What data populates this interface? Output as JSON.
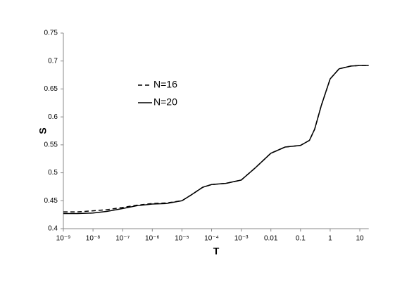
{
  "chart_data": {
    "type": "line",
    "x_label": "T",
    "y_label": "S",
    "xscale": "log",
    "x": [
      1e-09,
      3e-09,
      1e-08,
      3e-08,
      1e-07,
      3e-07,
      1e-06,
      3e-06,
      1e-05,
      2e-05,
      5e-05,
      0.0001,
      0.0003,
      0.001,
      0.003,
      0.01,
      0.03,
      0.1,
      0.2,
      0.3,
      0.5,
      1,
      2,
      5,
      10,
      20
    ],
    "series": [
      {
        "name": "N=16",
        "color": "#000000",
        "dash": "6,4",
        "values": [
          0.43,
          0.43,
          0.432,
          0.434,
          0.438,
          0.442,
          0.445,
          0.446,
          0.45,
          0.46,
          0.474,
          0.479,
          0.481,
          0.487,
          0.509,
          0.535,
          0.546,
          0.549,
          0.558,
          0.578,
          0.62,
          0.668,
          0.686,
          0.691,
          0.692,
          0.692
        ]
      },
      {
        "name": "N=20",
        "color": "#000000",
        "values": [
          0.427,
          0.427,
          0.428,
          0.431,
          0.436,
          0.441,
          0.444,
          0.445,
          0.45,
          0.46,
          0.474,
          0.479,
          0.481,
          0.487,
          0.509,
          0.535,
          0.546,
          0.549,
          0.558,
          0.578,
          0.62,
          0.668,
          0.686,
          0.691,
          0.692,
          0.692
        ]
      }
    ],
    "xlim": [
      1e-09,
      20
    ],
    "xticks": [
      {
        "value": 1e-09,
        "label": "10⁻⁹"
      },
      {
        "value": 1e-08,
        "label": "10⁻⁸"
      },
      {
        "value": 1e-07,
        "label": "10⁻⁷"
      },
      {
        "value": 1e-06,
        "label": "10⁻⁶"
      },
      {
        "value": 1e-05,
        "label": "10⁻⁵"
      },
      {
        "value": 0.0001,
        "label": "10⁻⁴"
      },
      {
        "value": 0.001,
        "label": "10⁻³"
      },
      0.01,
      0.1,
      1,
      10
    ],
    "ylim": [
      0.4,
      0.75
    ],
    "yticks": [
      0.4,
      0.45,
      0.5,
      0.55,
      0.6,
      0.65,
      0.7,
      0.75
    ],
    "grid": false
  }
}
